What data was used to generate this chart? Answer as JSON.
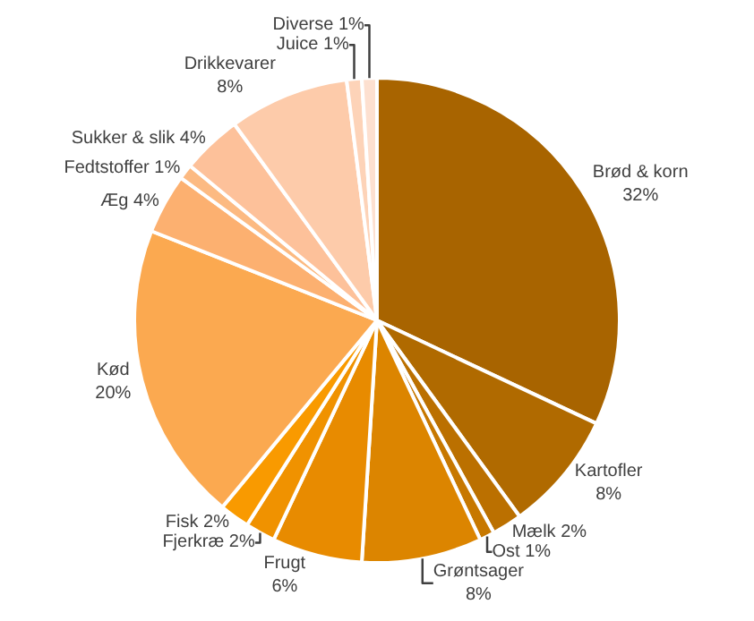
{
  "chart_data": {
    "type": "pie",
    "categories": [
      "Brød & korn",
      "Kartofler",
      "Mælk",
      "Ost",
      "Grøntsager",
      "Frugt",
      "Fjerkræ",
      "Fisk",
      "Kød",
      "Æg",
      "Fedtstoffer",
      "Sukker & slik",
      "Drikkevarer",
      "Juice",
      "Diverse"
    ],
    "values": [
      32,
      8,
      2,
      1,
      8,
      6,
      2,
      2,
      20,
      4,
      1,
      4,
      8,
      1,
      1
    ],
    "value_labels": [
      "32%",
      "8%",
      "2%",
      "1%",
      "8%",
      "6%",
      "2%",
      "2%",
      "20%",
      "4%",
      "1%",
      "4%",
      "8%",
      "1%",
      "1%"
    ],
    "colors": [
      "#a86400",
      "#b06a00",
      "#bb7000",
      "#c77800",
      "#dc8500",
      "#e88b00",
      "#f09200",
      "#f99a00",
      "#fba950",
      "#fcb070",
      "#fcba82",
      "#fdc19a",
      "#fdcbaa",
      "#fdd3b8",
      "#fde0d0"
    ],
    "legend": false
  }
}
